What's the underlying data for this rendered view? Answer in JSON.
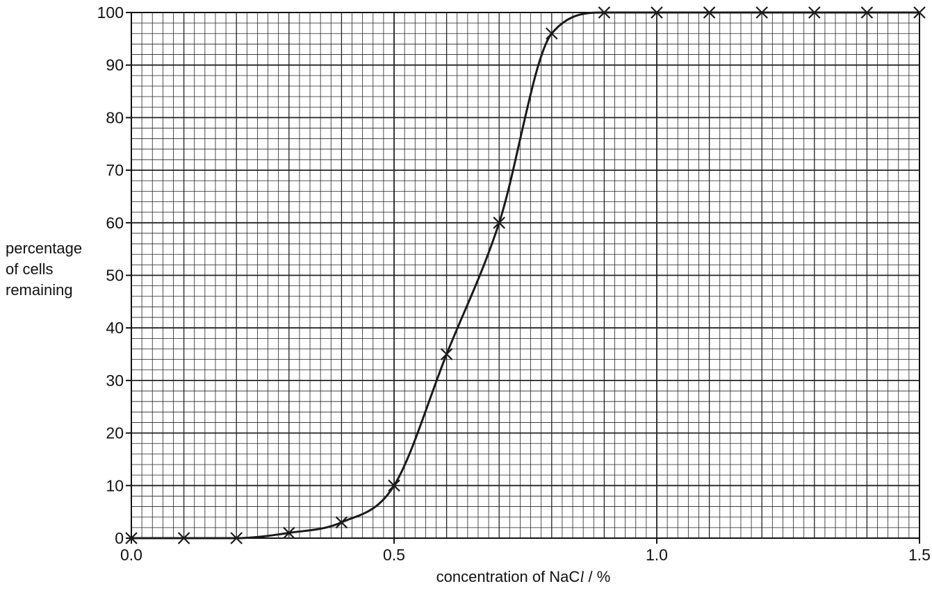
{
  "chart_data": {
    "type": "line",
    "title": "",
    "xlabel": "concentration of NaCl / %",
    "xlabel_parts": {
      "before": "concentration of NaC",
      "italic": "l",
      "after": " / %"
    },
    "ylabel": "percentage of cells remaining",
    "ylabel_lines": [
      "percentage",
      "of cells",
      "remaining"
    ],
    "xlim": [
      0.0,
      1.5
    ],
    "ylim": [
      0,
      100
    ],
    "xticks": [
      "0.0",
      "0.5",
      "1.0",
      "1.5"
    ],
    "yticks": [
      "0",
      "10",
      "20",
      "30",
      "40",
      "50",
      "60",
      "70",
      "80",
      "90",
      "100"
    ],
    "grid": true,
    "line_color": "#1a1a1a",
    "grid_color": "#222222",
    "series": [
      {
        "marker": "cross",
        "x": [
          0.0,
          0.1,
          0.2,
          0.3,
          0.4,
          0.5,
          0.6,
          0.7,
          0.8,
          0.9,
          1.0,
          1.1,
          1.2,
          1.3,
          1.4,
          1.5
        ],
        "values": [
          0,
          0,
          0,
          1,
          3,
          10,
          35,
          60,
          96,
          100,
          100,
          100,
          100,
          100,
          100,
          100
        ]
      }
    ]
  }
}
